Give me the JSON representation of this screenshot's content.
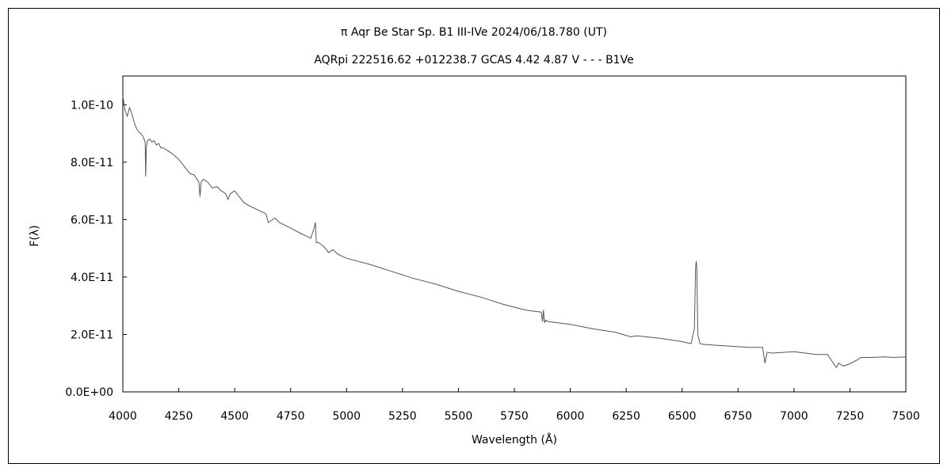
{
  "chart_data": {
    "type": "line",
    "title": "π Aqr   Be Star   Sp. B1 III-IVe   2024/06/18.780 (UT)",
    "subtitle": "AQRpi 222516.62 +012238.7 GCAS 4.42 4.87 V - - - B1Ve",
    "xlabel": "Wavelength (Å)",
    "ylabel": "F(λ)",
    "xlim": [
      4000,
      7500
    ],
    "ylim": [
      0,
      1.1e-10
    ],
    "x_ticks": [
      4000,
      4250,
      4500,
      4750,
      5000,
      5250,
      5500,
      5750,
      6000,
      6250,
      6500,
      6750,
      7000,
      7250,
      7500
    ],
    "x_tick_labels": [
      "4000",
      "4250",
      "4500",
      "4750",
      "5000",
      "5250",
      "5500",
      "5750",
      "6000",
      "6250",
      "6500",
      "6750",
      "7000",
      "7250",
      "7500"
    ],
    "y_ticks": [
      0,
      2e-11,
      4e-11,
      6e-11,
      8e-11,
      1e-10
    ],
    "y_tick_labels": [
      "0.0E+00",
      "2.0E-11",
      "4.0E-11",
      "6.0E-11",
      "8.0E-11",
      "1.0E-10"
    ],
    "grid": false,
    "legend": "none",
    "line_color": "#555555",
    "series": [
      {
        "x": [
          4000,
          4010,
          4020,
          4030,
          4040,
          4050,
          4060,
          4070,
          4080,
          4090,
          4100,
          4102,
          4105,
          4110,
          4120,
          4130,
          4140,
          4150,
          4160,
          4170,
          4180,
          4200,
          4220,
          4250,
          4270,
          4300,
          4320,
          4340,
          4345,
          4350,
          4360,
          4380,
          4400,
          4420,
          4440,
          4460,
          4470,
          4480,
          4500,
          4520,
          4540,
          4560,
          4600,
          4640,
          4650,
          4680,
          4700,
          4750,
          4800,
          4840,
          4855,
          4861,
          4865,
          4875,
          4900,
          4920,
          4940,
          4960,
          5000,
          5100,
          5200,
          5300,
          5400,
          5500,
          5600,
          5700,
          5800,
          5870,
          5876,
          5880,
          5885,
          5890,
          5900,
          6000,
          6100,
          6200,
          6270,
          6300,
          6400,
          6500,
          6540,
          6555,
          6560,
          6563,
          6566,
          6570,
          6580,
          6600,
          6700,
          6800,
          6860,
          6870,
          6875,
          6880,
          6900,
          7000,
          7050,
          7100,
          7150,
          7180,
          7190,
          7200,
          7220,
          7250,
          7280,
          7300,
          7350,
          7400,
          7450,
          7500
        ],
        "y": [
          1.03e-10,
          9.8e-11,
          9.6e-11,
          9.9e-11,
          9.7e-11,
          9.4e-11,
          9.2e-11,
          9.05e-11,
          9e-11,
          8.9e-11,
          8.7e-11,
          7.5e-11,
          8.5e-11,
          8.75e-11,
          8.8e-11,
          8.7e-11,
          8.75e-11,
          8.6e-11,
          8.65e-11,
          8.5e-11,
          8.5e-11,
          8.4e-11,
          8.3e-11,
          8.1e-11,
          7.9e-11,
          7.6e-11,
          7.55e-11,
          7.3e-11,
          6.8e-11,
          7.3e-11,
          7.4e-11,
          7.3e-11,
          7.1e-11,
          7.15e-11,
          7e-11,
          6.9e-11,
          6.7e-11,
          6.9e-11,
          7e-11,
          6.8e-11,
          6.6e-11,
          6.5e-11,
          6.35e-11,
          6.2e-11,
          5.9e-11,
          6.05e-11,
          5.9e-11,
          5.7e-11,
          5.5e-11,
          5.35e-11,
          5.7e-11,
          5.9e-11,
          5.2e-11,
          5.2e-11,
          5.05e-11,
          4.85e-11,
          4.95e-11,
          4.8e-11,
          4.65e-11,
          4.45e-11,
          4.2e-11,
          3.95e-11,
          3.75e-11,
          3.5e-11,
          3.3e-11,
          3.05e-11,
          2.85e-11,
          2.78e-11,
          2.45e-11,
          2.85e-11,
          2.4e-11,
          2.5e-11,
          2.45e-11,
          2.35e-11,
          2.2e-11,
          2.08e-11,
          1.92e-11,
          1.95e-11,
          1.87e-11,
          1.75e-11,
          1.68e-11,
          2.2e-11,
          4.3e-11,
          4.55e-11,
          4.3e-11,
          2e-11,
          1.68e-11,
          1.65e-11,
          1.6e-11,
          1.55e-11,
          1.55e-11,
          1e-11,
          1.2e-11,
          1.38e-11,
          1.35e-11,
          1.4e-11,
          1.35e-11,
          1.3e-11,
          1.3e-11,
          9.5e-12,
          8.5e-12,
          1e-11,
          9e-12,
          9.8e-12,
          1.1e-11,
          1.2e-11,
          1.2e-11,
          1.22e-11,
          1.2e-11,
          1.22e-11
        ]
      }
    ]
  }
}
